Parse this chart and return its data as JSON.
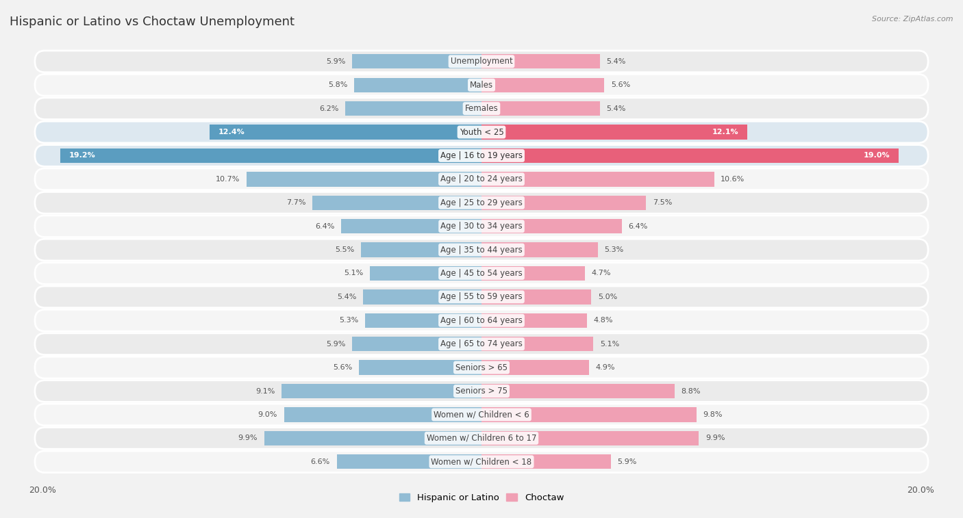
{
  "title": "Hispanic or Latino vs Choctaw Unemployment",
  "source": "Source: ZipAtlas.com",
  "categories": [
    "Unemployment",
    "Males",
    "Females",
    "Youth < 25",
    "Age | 16 to 19 years",
    "Age | 20 to 24 years",
    "Age | 25 to 29 years",
    "Age | 30 to 34 years",
    "Age | 35 to 44 years",
    "Age | 45 to 54 years",
    "Age | 55 to 59 years",
    "Age | 60 to 64 years",
    "Age | 65 to 74 years",
    "Seniors > 65",
    "Seniors > 75",
    "Women w/ Children < 6",
    "Women w/ Children 6 to 17",
    "Women w/ Children < 18"
  ],
  "hispanic_values": [
    5.9,
    5.8,
    6.2,
    12.4,
    19.2,
    10.7,
    7.7,
    6.4,
    5.5,
    5.1,
    5.4,
    5.3,
    5.9,
    5.6,
    9.1,
    9.0,
    9.9,
    6.6
  ],
  "choctaw_values": [
    5.4,
    5.6,
    5.4,
    12.1,
    19.0,
    10.6,
    7.5,
    6.4,
    5.3,
    4.7,
    5.0,
    4.8,
    5.1,
    4.9,
    8.8,
    9.8,
    9.9,
    5.9
  ],
  "hispanic_color": "#92bcd4",
  "choctaw_color": "#f0a0b4",
  "highlight_hispanic_color": "#5b9dc0",
  "highlight_choctaw_color": "#e8607a",
  "max_value": 20.0,
  "background_color": "#f2f2f2",
  "row_colors_even": "#ebebeb",
  "row_colors_odd": "#f5f5f5",
  "highlight_row_colors_even": "#dde8f0",
  "highlight_row_colors_odd": "#dde8f0",
  "highlight_rows": [
    3,
    4
  ],
  "title_fontsize": 13,
  "label_fontsize": 8.5,
  "value_fontsize": 8,
  "source_fontsize": 8
}
